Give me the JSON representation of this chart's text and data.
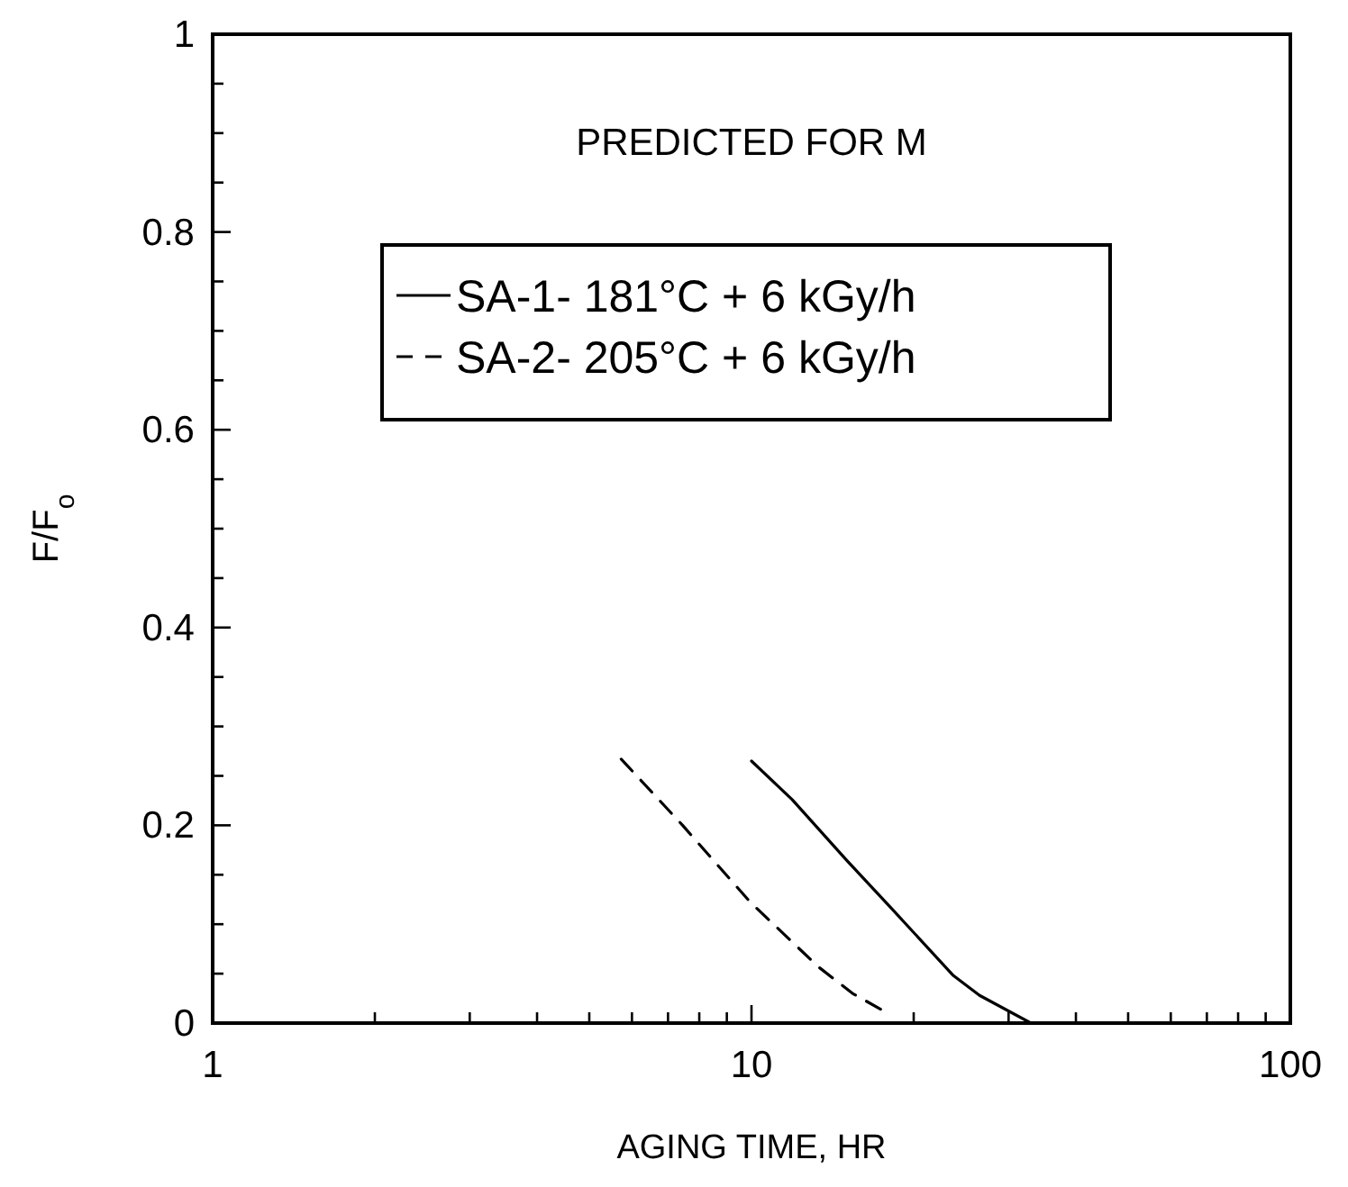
{
  "chart_data": {
    "type": "line",
    "title": "PREDICTED FOR M",
    "xlabel": "AGING TIME, HR",
    "ylabel": "F/F$_{o}$",
    "log": "x",
    "legend": "top",
    "grid": false,
    "xlim": [
      1,
      100
    ],
    "xticks": [
      1,
      {
        "value": 2,
        "label": null
      },
      {
        "value": 3,
        "label": null
      },
      {
        "value": 4,
        "label": null
      },
      {
        "value": 5,
        "label": null
      },
      {
        "value": 6,
        "label": null
      },
      {
        "value": 7,
        "label": null
      },
      {
        "value": 8,
        "label": null
      },
      {
        "value": 9,
        "label": null
      },
      10,
      {
        "value": 20,
        "label": null
      },
      {
        "value": 30,
        "label": null
      },
      {
        "value": 40,
        "label": null
      },
      {
        "value": 50,
        "label": null
      },
      {
        "value": 60,
        "label": null
      },
      {
        "value": 70,
        "label": null
      },
      {
        "value": 80,
        "label": null
      },
      {
        "value": 90,
        "label": null
      },
      100
    ],
    "ylim": [
      0,
      1
    ],
    "yticks": [
      0,
      {
        "value": 0.05,
        "label": null
      },
      {
        "value": 0.1,
        "label": null
      },
      {
        "value": 0.15,
        "label": null
      },
      0.2,
      {
        "value": 0.25,
        "label": null
      },
      {
        "value": 0.3,
        "label": null
      },
      {
        "value": 0.35,
        "label": null
      },
      0.4,
      {
        "value": 0.45,
        "label": null
      },
      {
        "value": 0.5,
        "label": null
      },
      {
        "value": 0.55,
        "label": null
      },
      0.6,
      {
        "value": 0.65,
        "label": null
      },
      {
        "value": 0.7,
        "label": null
      },
      {
        "value": 0.75,
        "label": null
      },
      0.8,
      {
        "value": 0.85,
        "label": null
      },
      {
        "value": 0.9,
        "label": null
      },
      {
        "value": 0.95,
        "label": null
      },
      1
    ],
    "series": [
      {
        "name": "SA-1- 181°C + 6 kGy/h",
        "color": "#000000",
        "line_style": "solid",
        "x": [
          10,
          11.9,
          15,
          18.4,
          23.7,
          26.5,
          33
        ],
        "values": [
          0.265,
          0.226,
          0.165,
          0.113,
          0.048,
          0.028,
          0
        ]
      },
      {
        "name": "SA-2- 205°C + 6 kGy/h",
        "color": "#000000",
        "line_style": "dashed",
        "x": [
          5.73,
          7.45,
          9.96,
          13.3,
          15.4,
          17.5
        ],
        "values": [
          0.267,
          0.2,
          0.122,
          0.057,
          0.03,
          0.013
        ]
      }
    ]
  }
}
